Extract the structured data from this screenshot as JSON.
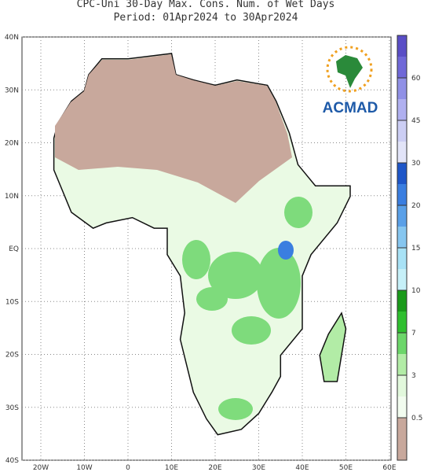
{
  "header": {
    "title": "CPC-Uni 30-Day Max. Cons. Num. of Wet Days",
    "period": "Period: 01Apr2024 to 30Apr2024"
  },
  "map": {
    "lon_labels": [
      "20W",
      "10W",
      "0",
      "10E",
      "20E",
      "30E",
      "40E",
      "50E",
      "60E"
    ],
    "lat_labels": [
      "40N",
      "30N",
      "20N",
      "10N",
      "EQ",
      "10S",
      "20S",
      "30S",
      "40S"
    ]
  },
  "colorbar": {
    "labels": [
      "0.5",
      "3",
      "7",
      "10",
      "15",
      "20",
      "30",
      "45",
      "60"
    ],
    "colors": [
      "#c8a89c",
      "#c8a89c",
      "#f2fcef",
      "#e2f8dc",
      "#b2eca6",
      "#6cd66a",
      "#2fbf2f",
      "#1a9a1a",
      "#c6f0f8",
      "#a8e2f6",
      "#86c6f0",
      "#5aa0e8",
      "#3a7ee0",
      "#1e56c8",
      "#e2e4f8",
      "#cccef4",
      "#b0b0f0",
      "#9090e6",
      "#7068d8",
      "#5a4ec6"
    ]
  },
  "logo": {
    "text": "ACMAD"
  }
}
